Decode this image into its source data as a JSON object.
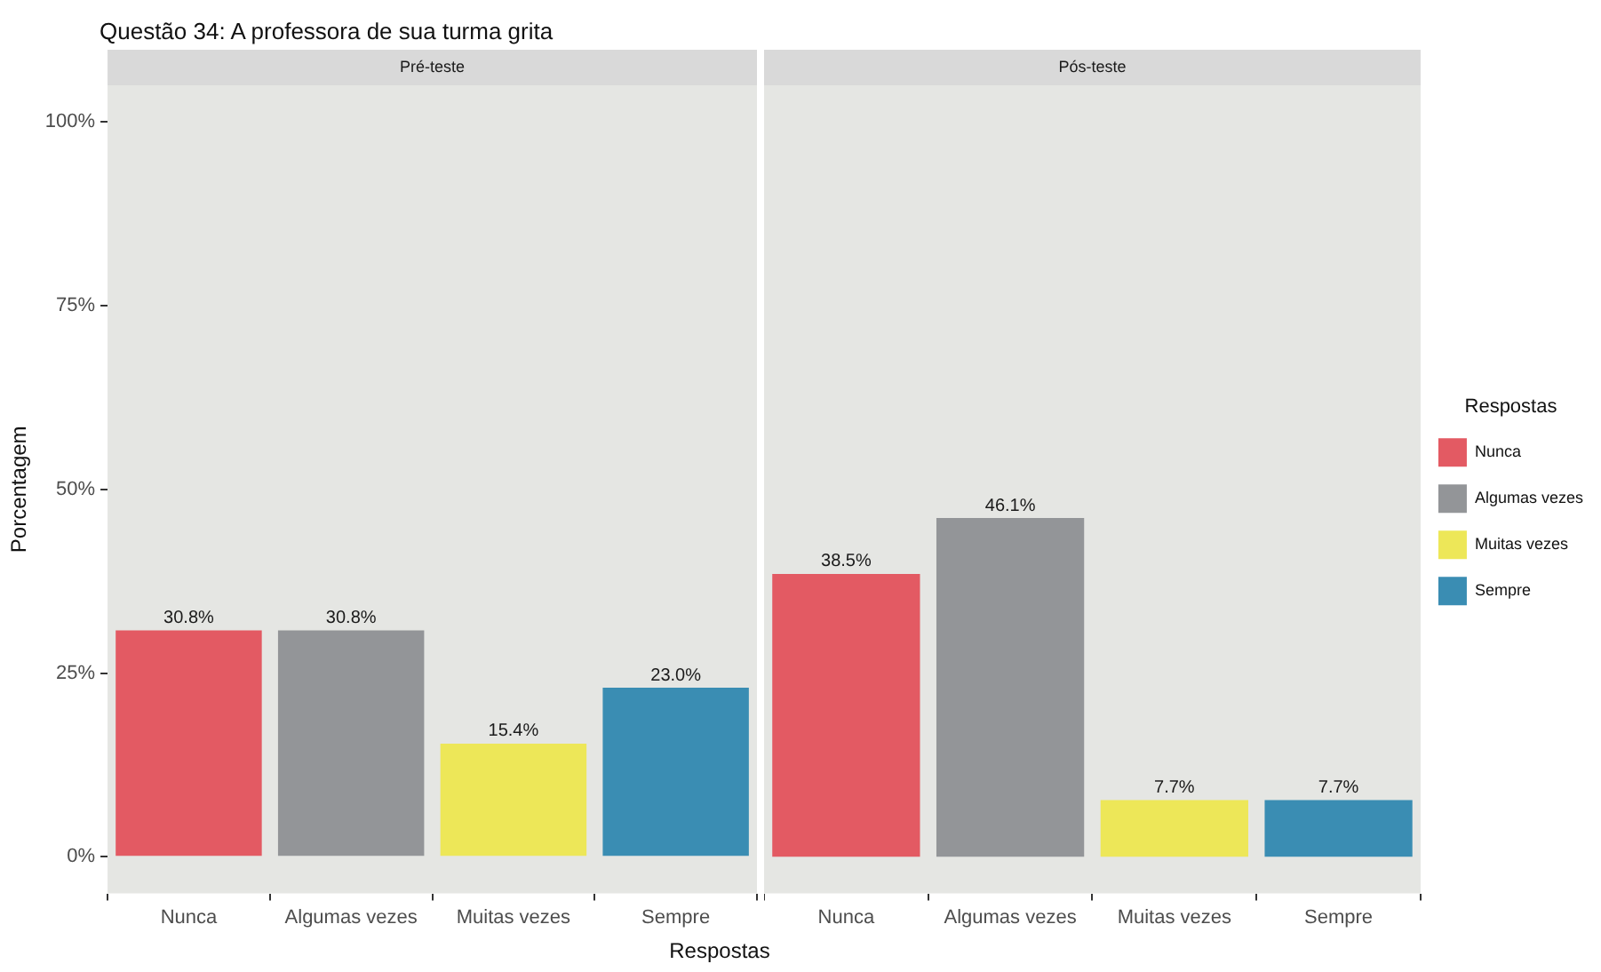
{
  "chart_data": [
    {
      "type": "bar",
      "title": "Questão 34: A professora de sua turma grita",
      "subtitle": "Pré-teste",
      "xlabel": "Respostas",
      "ylabel": "Porcentagem",
      "categories": [
        "Nunca",
        "Algumas vezes",
        "Muitas vezes",
        "Sempre"
      ],
      "series": [
        {
          "color": "#e35a63",
          "values": [
            30.8,
            null,
            null,
            null
          ],
          "value_labels": [
            "30.8%",
            null,
            null,
            null
          ]
        },
        {
          "color": "#939598",
          "values": [
            null,
            30.8,
            null,
            null
          ],
          "value_labels": [
            null,
            "30.8%",
            null,
            null
          ]
        },
        {
          "color": "#ede758",
          "values": [
            null,
            null,
            15.4,
            null
          ],
          "value_labels": [
            null,
            null,
            "15.4%",
            null
          ]
        },
        {
          "color": "#3a8db3",
          "values": [
            null,
            null,
            null,
            23.0
          ],
          "value_labels": [
            null,
            null,
            null,
            "23.0%"
          ]
        }
      ],
      "ylim": [
        -5,
        105
      ],
      "yticks": [
        {
          "value": 0,
          "label": "0%"
        },
        {
          "value": 25,
          "label": "25%"
        },
        {
          "value": 50,
          "label": "50%"
        },
        {
          "value": 75,
          "label": "75%"
        },
        {
          "value": 100,
          "label": "100%"
        }
      ],
      "legend": false
    },
    {
      "type": "bar",
      "subtitle": "Pós-teste",
      "legend_title": "Respostas",
      "categories": [
        "Nunca",
        "Algumas vezes",
        "Muitas vezes",
        "Sempre"
      ],
      "series": [
        {
          "name": "Nunca",
          "color": "#e35a63",
          "values": [
            38.5,
            null,
            null,
            null
          ],
          "value_labels": [
            "38.5%",
            null,
            null,
            null
          ]
        },
        {
          "name": "Algumas vezes",
          "color": "#939598",
          "values": [
            null,
            46.1,
            null,
            null
          ],
          "value_labels": [
            null,
            "46.1%",
            null,
            null
          ]
        },
        {
          "name": "Muitas vezes",
          "color": "#ede758",
          "values": [
            null,
            null,
            7.7,
            null
          ],
          "value_labels": [
            null,
            null,
            "7.7%",
            null
          ]
        },
        {
          "name": "Sempre",
          "color": "#3a8db3",
          "values": [
            null,
            null,
            null,
            7.7
          ],
          "value_labels": [
            null,
            null,
            null,
            "7.7%"
          ]
        }
      ],
      "ylim": [
        -5,
        105
      ],
      "tick_labels": "x",
      "legend": "right"
    }
  ]
}
